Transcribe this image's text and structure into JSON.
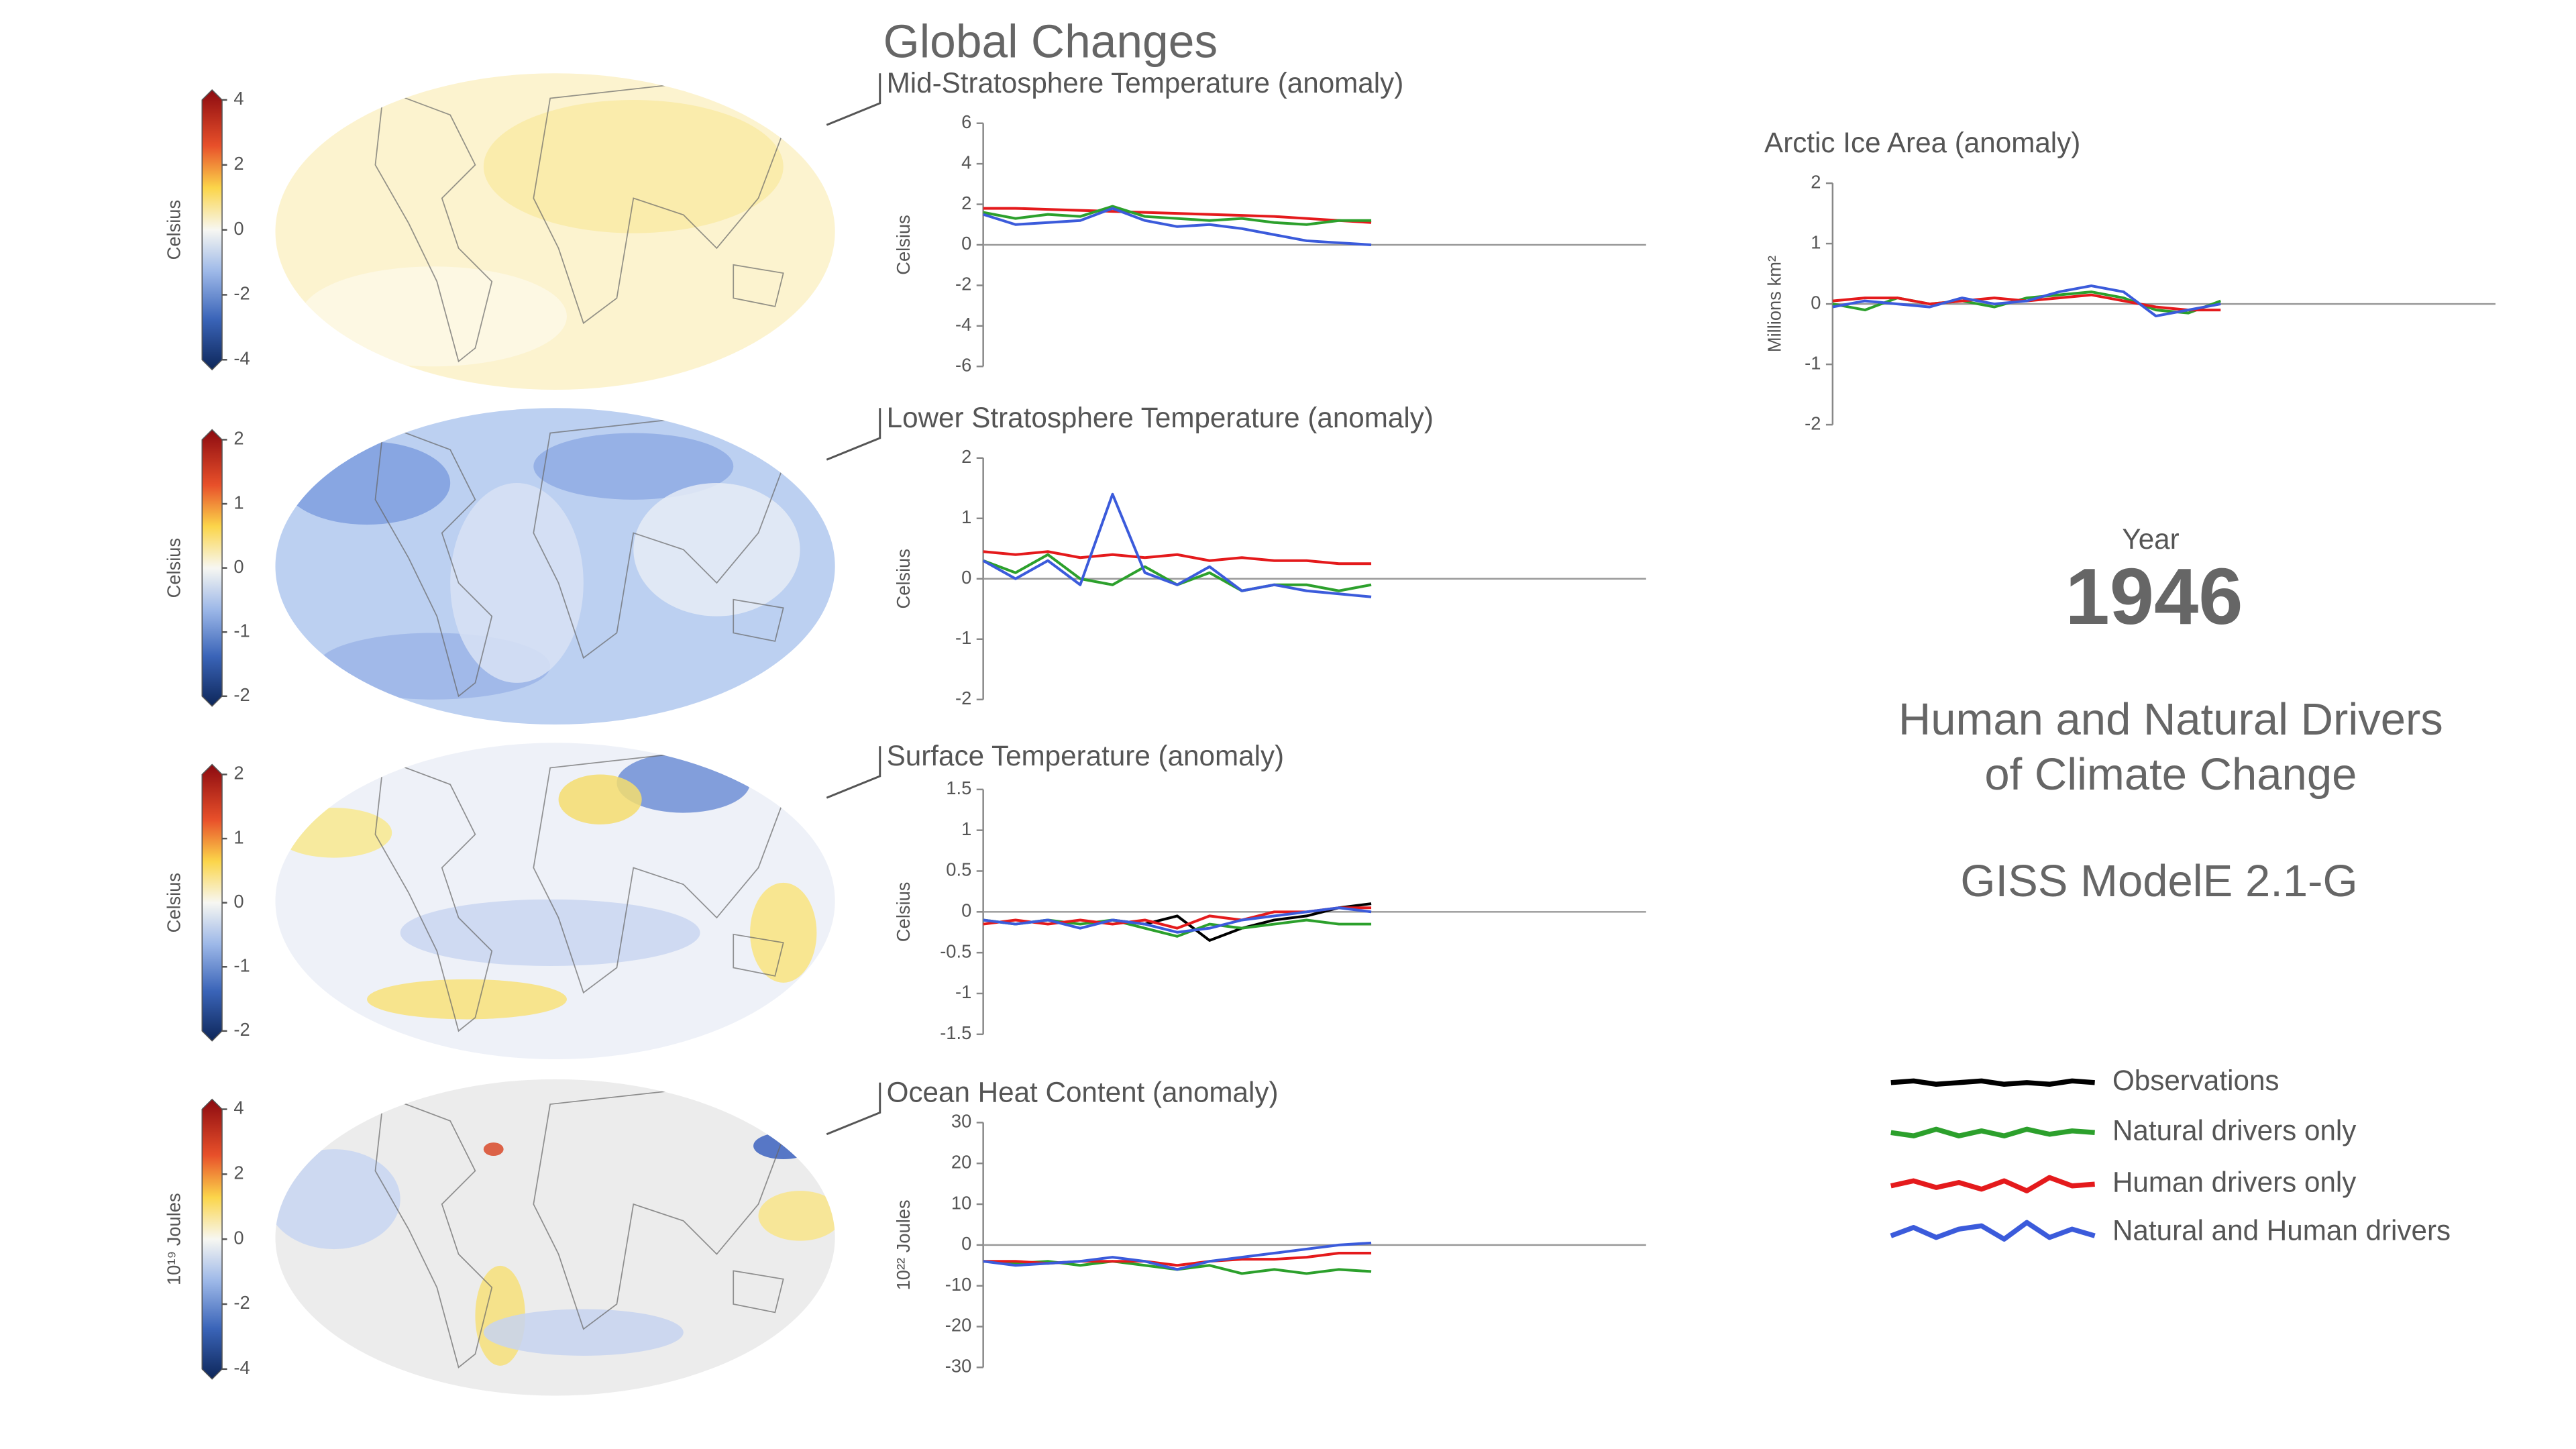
{
  "title": "Global Changes",
  "year_label": "Year",
  "year": 1946,
  "headline": [
    "Human and Natural Drivers",
    "of Climate Change"
  ],
  "model": "GISS ModelE 2.1-G",
  "chart_data": [
    {
      "type": "line",
      "title": "Mid-Stratosphere Temperature (anomaly)",
      "ylabel": "Celsius",
      "x": [
        1850,
        1858,
        1866,
        1874,
        1882,
        1890,
        1898,
        1906,
        1914,
        1922,
        1930,
        1938,
        1946
      ],
      "xlim": [
        1850,
        2014
      ],
      "ylim": [
        -6,
        6
      ],
      "yticks": [
        -6,
        -4,
        -2,
        0,
        2,
        4,
        6
      ],
      "series": [
        {
          "color": "#e41a1c",
          "values": [
            1.8,
            1.8,
            1.75,
            1.7,
            1.65,
            1.6,
            1.55,
            1.5,
            1.45,
            1.4,
            1.3,
            1.2,
            1.1
          ]
        },
        {
          "color": "#2ca02c",
          "values": [
            1.6,
            1.3,
            1.5,
            1.4,
            1.9,
            1.4,
            1.3,
            1.2,
            1.3,
            1.1,
            1.0,
            1.2,
            1.2
          ]
        },
        {
          "color": "#3b5bdb",
          "values": [
            1.5,
            1.0,
            1.1,
            1.2,
            1.8,
            1.2,
            0.9,
            1.0,
            0.8,
            0.5,
            0.2,
            0.1,
            0.0
          ]
        }
      ],
      "colorbar": {
        "label": "Celsius",
        "lim": [
          -4,
          4
        ],
        "ticks": [
          -4,
          -2,
          0,
          2,
          4
        ]
      }
    },
    {
      "type": "line",
      "title": "Lower Stratosphere Temperature (anomaly)",
      "ylabel": "Celsius",
      "x": [
        1850,
        1858,
        1866,
        1874,
        1882,
        1890,
        1898,
        1906,
        1914,
        1922,
        1930,
        1938,
        1946
      ],
      "xlim": [
        1850,
        2014
      ],
      "ylim": [
        -2,
        2
      ],
      "yticks": [
        -2,
        -1,
        0,
        1,
        2
      ],
      "series": [
        {
          "color": "#e41a1c",
          "values": [
            0.45,
            0.4,
            0.45,
            0.35,
            0.4,
            0.35,
            0.4,
            0.3,
            0.35,
            0.3,
            0.3,
            0.25,
            0.25
          ]
        },
        {
          "color": "#2ca02c",
          "values": [
            0.3,
            0.1,
            0.4,
            0.0,
            -0.1,
            0.2,
            -0.1,
            0.1,
            -0.2,
            -0.1,
            -0.1,
            -0.2,
            -0.1
          ]
        },
        {
          "color": "#3b5bdb",
          "values": [
            0.3,
            0.0,
            0.3,
            -0.1,
            1.4,
            0.1,
            -0.1,
            0.2,
            -0.2,
            -0.1,
            -0.2,
            -0.25,
            -0.3
          ]
        }
      ],
      "colorbar": {
        "label": "Celsius",
        "lim": [
          -2,
          2
        ],
        "ticks": [
          -2,
          -1,
          0,
          1,
          2
        ]
      }
    },
    {
      "type": "line",
      "title": "Surface Temperature (anomaly)",
      "ylabel": "Celsius",
      "x": [
        1850,
        1858,
        1866,
        1874,
        1882,
        1890,
        1898,
        1906,
        1914,
        1922,
        1930,
        1938,
        1946
      ],
      "xlim": [
        1850,
        2014
      ],
      "ylim": [
        -1.5,
        1.5
      ],
      "yticks": [
        -1.5,
        -1,
        -0.5,
        0,
        0.5,
        1,
        1.5
      ],
      "series": [
        {
          "name": "Observations",
          "color": "#000000",
          "values": [
            null,
            null,
            null,
            null,
            -0.1,
            -0.15,
            -0.05,
            -0.35,
            -0.2,
            -0.1,
            -0.05,
            0.05,
            0.1
          ]
        },
        {
          "name": "Natural drivers only",
          "color": "#2ca02c",
          "values": [
            -0.1,
            -0.15,
            -0.1,
            -0.15,
            -0.1,
            -0.2,
            -0.3,
            -0.15,
            -0.2,
            -0.15,
            -0.1,
            -0.15,
            -0.15
          ]
        },
        {
          "name": "Human drivers only",
          "color": "#e41a1c",
          "values": [
            -0.15,
            -0.1,
            -0.15,
            -0.1,
            -0.15,
            -0.1,
            -0.2,
            -0.05,
            -0.1,
            0,
            0,
            0.05,
            0.05
          ]
        },
        {
          "name": "Natural and Human drivers",
          "color": "#3b5bdb",
          "values": [
            -0.1,
            -0.15,
            -0.1,
            -0.2,
            -0.1,
            -0.15,
            -0.25,
            -0.2,
            -0.1,
            -0.05,
            0,
            0.05,
            0
          ]
        }
      ],
      "colorbar": {
        "label": "Celsius",
        "lim": [
          -2,
          2
        ],
        "ticks": [
          -2,
          -1,
          0,
          1,
          2
        ]
      }
    },
    {
      "type": "line",
      "title": "Ocean Heat Content (anomaly)",
      "ylabel": "10²² Joules",
      "x": [
        1850,
        1858,
        1866,
        1874,
        1882,
        1890,
        1898,
        1906,
        1914,
        1922,
        1930,
        1938,
        1946
      ],
      "xlim": [
        1850,
        2014
      ],
      "ylim": [
        -30,
        30
      ],
      "yticks": [
        -30,
        -20,
        -10,
        0,
        10,
        20,
        30
      ],
      "series": [
        {
          "color": "#2ca02c",
          "values": [
            -4,
            -4.5,
            -4,
            -5,
            -4,
            -5,
            -6,
            -5,
            -7,
            -6,
            -7,
            -6,
            -6.5
          ]
        },
        {
          "color": "#e41a1c",
          "values": [
            -4,
            -4,
            -4.5,
            -4,
            -4,
            -4,
            -5,
            -4,
            -3.5,
            -3.5,
            -3,
            -2,
            -2
          ]
        },
        {
          "color": "#3b5bdb",
          "values": [
            -4,
            -5,
            -4.5,
            -4,
            -3,
            -4,
            -6,
            -4,
            -3,
            -2,
            -1,
            0,
            0.5
          ]
        }
      ],
      "colorbar": {
        "label": "10¹⁹ Joules",
        "lim": [
          -4,
          4
        ],
        "ticks": [
          -4,
          -2,
          0,
          2,
          4
        ]
      }
    },
    {
      "type": "line",
      "title": "Arctic Ice Area (anomaly)",
      "ylabel": "Millions km²",
      "x": [
        1850,
        1858,
        1866,
        1874,
        1882,
        1890,
        1898,
        1906,
        1914,
        1922,
        1930,
        1938,
        1946
      ],
      "xlim": [
        1850,
        2014
      ],
      "ylim": [
        -2,
        2
      ],
      "yticks": [
        -2,
        -1,
        0,
        1,
        2
      ],
      "series": [
        {
          "color": "#2ca02c",
          "values": [
            0,
            -0.1,
            0.1,
            0,
            0.05,
            -0.05,
            0.1,
            0.15,
            0.2,
            0.1,
            -0.1,
            -0.15,
            0.05
          ]
        },
        {
          "color": "#e41a1c",
          "values": [
            0.05,
            0.1,
            0.1,
            0,
            0.05,
            0.1,
            0.05,
            0.1,
            0.15,
            0.05,
            -0.05,
            -0.1,
            -0.1
          ]
        },
        {
          "color": "#3b5bdb",
          "values": [
            -0.05,
            0.05,
            0,
            -0.05,
            0.1,
            0,
            0.05,
            0.2,
            0.3,
            0.2,
            -0.2,
            -0.1,
            0
          ]
        }
      ]
    }
  ]
}
